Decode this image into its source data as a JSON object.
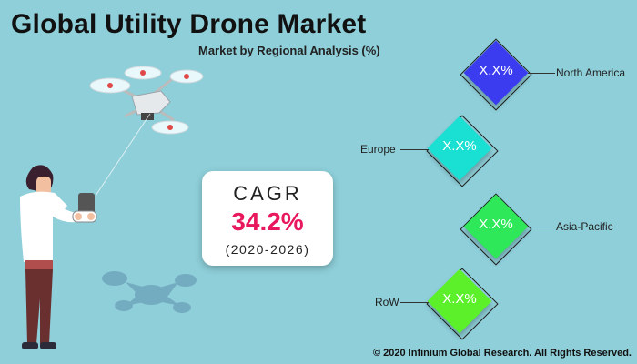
{
  "header": {
    "title": "Global Utility Drone Market",
    "subtitle": "Market by Regional Analysis (%)"
  },
  "cagr": {
    "label": "CAGR",
    "value": "34.2%",
    "period": "(2020-2026)"
  },
  "regions": [
    {
      "name": "North America",
      "value": "X.X%",
      "color": "#3b3bf0"
    },
    {
      "name": "Europe",
      "value": "X.X%",
      "color": "#19e0d2"
    },
    {
      "name": "Asia-Pacific",
      "value": "X.X%",
      "color": "#2ee85a"
    },
    {
      "name": "RoW",
      "value": "X.X%",
      "color": "#5cf02a"
    }
  ],
  "footer": {
    "copyright": "© 2020 Infinium Global Research. All Rights Reserved."
  },
  "illustration": {
    "drone_icon": "drone-icon",
    "person_icon": "person-with-controller-icon",
    "shadow_icon": "drone-shadow-icon"
  }
}
